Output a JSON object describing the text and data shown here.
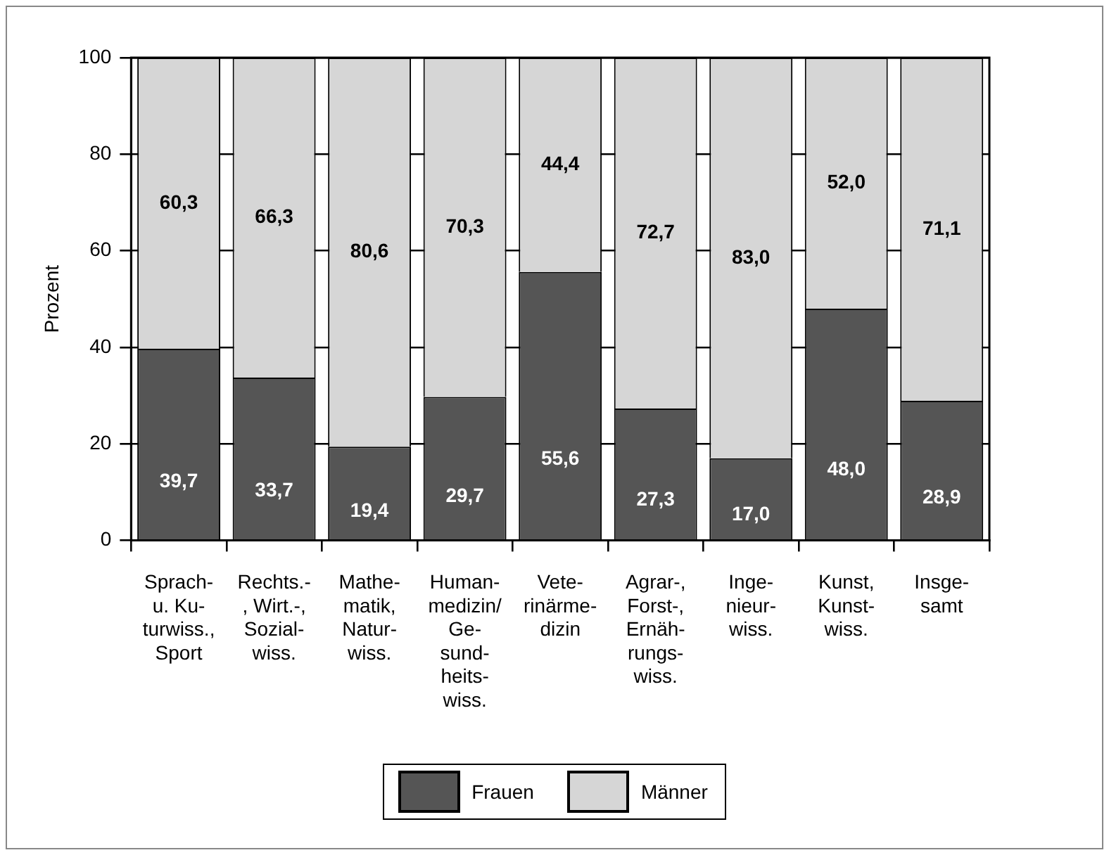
{
  "chart_data": {
    "type": "bar",
    "ylabel": "Prozent",
    "categories": [
      "Sprach-\nu. Ku-\nturwiss.,\nSport",
      "Rechts.-\n, Wirt.-,\nSozial-\nwiss.",
      "Mathe-\nmatik,\nNatur-\nwiss.",
      "Human-\nmedizin/\nGe-\nsund-\nheits-\nwiss.",
      "Vete-\nrinärme-\ndizin",
      "Agrar-,\nForst-,\nErnäh-\nrungs-\nwiss.",
      "Inge-\nnieur-\nwiss.",
      "Kunst,\nKunst-\nwiss.",
      "Insge-\nsamt"
    ],
    "series": [
      {
        "name": "Frauen",
        "color": "#555555",
        "values": [
          39.7,
          33.7,
          19.4,
          29.7,
          55.6,
          27.3,
          17.0,
          48.0,
          28.9
        ],
        "value_labels": [
          "39,7",
          "33,7",
          "19,4",
          "29,7",
          "55,6",
          "27,3",
          "17,0",
          "48,0",
          "28,9"
        ]
      },
      {
        "name": "Männer",
        "color": "#d6d6d6",
        "values": [
          60.3,
          66.3,
          80.6,
          70.3,
          44.4,
          72.7,
          83.0,
          52.0,
          71.1
        ],
        "value_labels": [
          "60,3",
          "66,3",
          "80,6",
          "70,3",
          "44,4",
          "72,7",
          "83,0",
          "52,0",
          "71,1"
        ]
      }
    ],
    "stacked": true,
    "ylim": [
      0,
      100
    ],
    "yticks": [
      0,
      20,
      40,
      60,
      80,
      100
    ],
    "grid": "y",
    "legend": "bottom"
  }
}
